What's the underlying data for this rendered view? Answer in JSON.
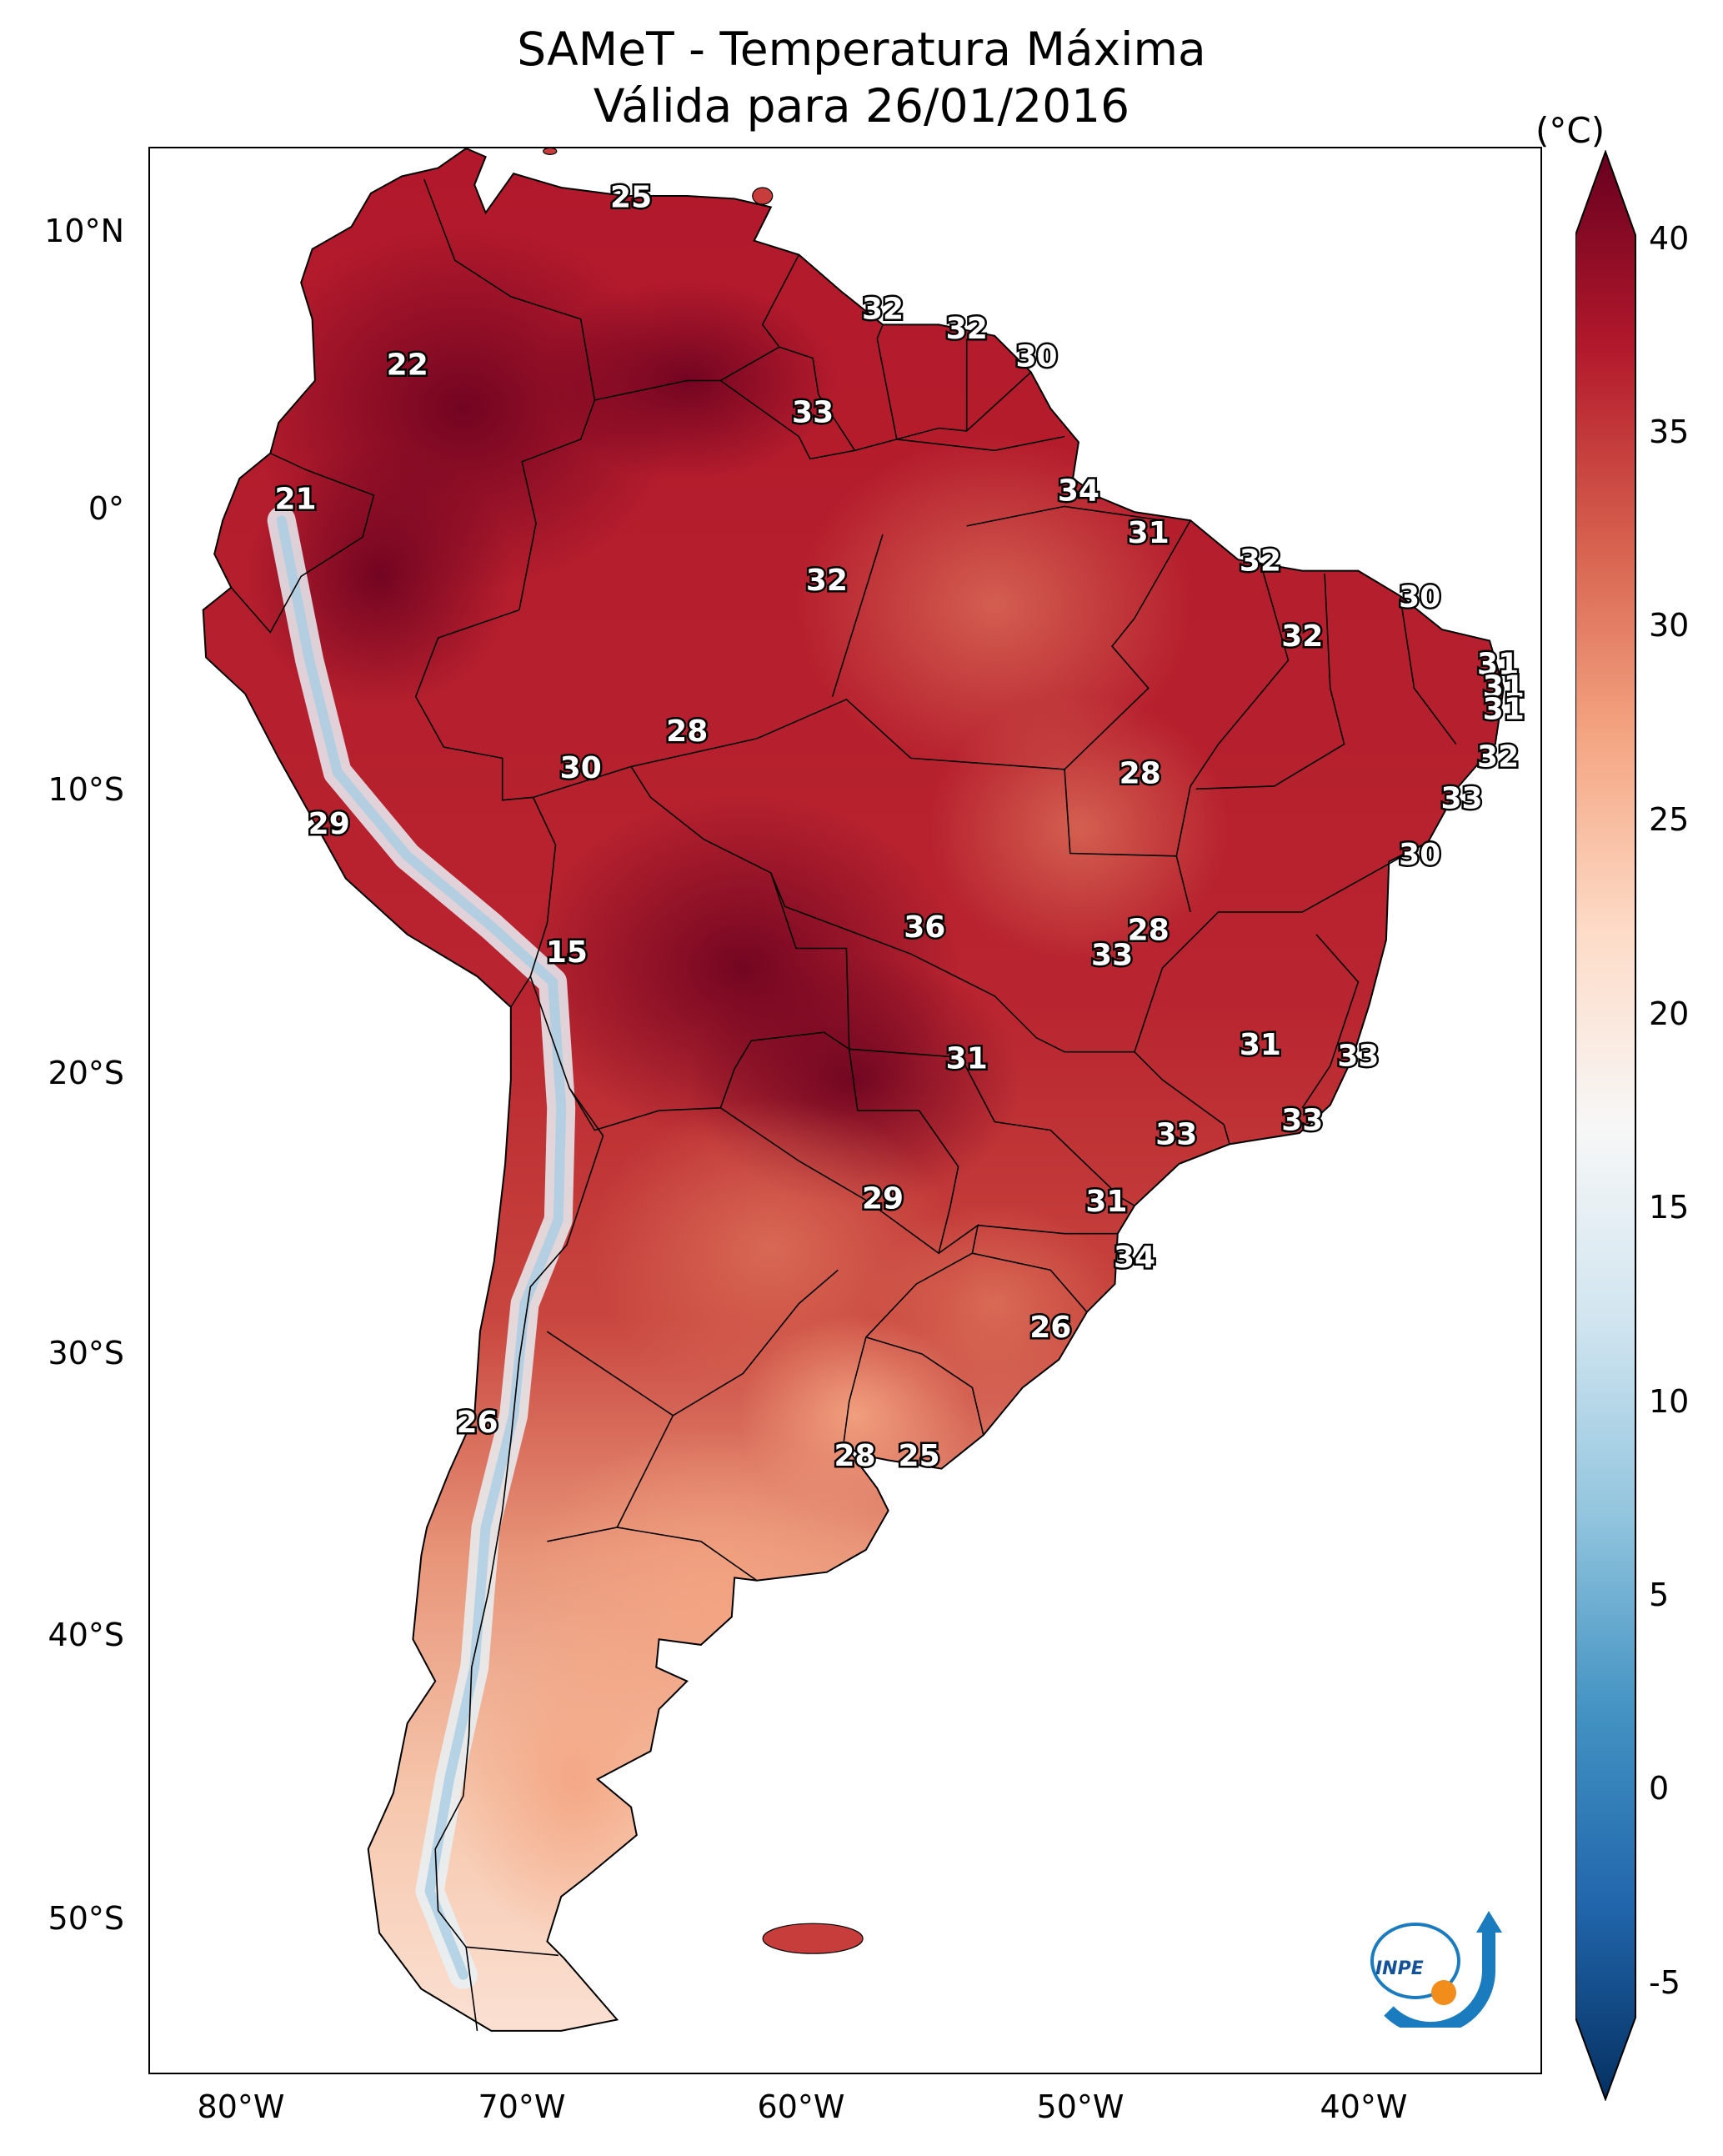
{
  "title": {
    "line1": "SAMeT - Temperatura Máxima",
    "line2": "Válida para 26/01/2016"
  },
  "axes": {
    "lat_ticks": [
      "10°N",
      "0°",
      "10°S",
      "20°S",
      "30°S",
      "40°S",
      "50°S"
    ],
    "lon_ticks": [
      "80°W",
      "70°W",
      "60°W",
      "50°W",
      "40°W"
    ]
  },
  "colorbar": {
    "unit": "(°C)",
    "ticks": [
      "40",
      "35",
      "30",
      "25",
      "20",
      "15",
      "10",
      "5",
      "0",
      "-5"
    ],
    "range": [
      -5,
      40
    ],
    "colors": [
      "#053061",
      "#2166ac",
      "#4393c3",
      "#92c5de",
      "#d1e5f0",
      "#f7f7f7",
      "#fddbc7",
      "#f4a582",
      "#d6604d",
      "#b2182b",
      "#67001f"
    ]
  },
  "contour_labels": [
    {
      "text": "25",
      "lon": -66.0,
      "lat": 10.5
    },
    {
      "text": "22",
      "lon": -74.0,
      "lat": 4.5
    },
    {
      "text": "21",
      "lon": -78.0,
      "lat": -0.3
    },
    {
      "text": "32",
      "lon": -57.0,
      "lat": 6.5
    },
    {
      "text": "32",
      "lon": -54.0,
      "lat": 5.8
    },
    {
      "text": "30",
      "lon": -51.5,
      "lat": 4.8
    },
    {
      "text": "33",
      "lon": -59.5,
      "lat": 2.8
    },
    {
      "text": "34",
      "lon": -50.0,
      "lat": 0.0
    },
    {
      "text": "31",
      "lon": -47.5,
      "lat": -1.5
    },
    {
      "text": "32",
      "lon": -59.0,
      "lat": -3.2
    },
    {
      "text": "32",
      "lon": -43.5,
      "lat": -2.5
    },
    {
      "text": "30",
      "lon": -37.8,
      "lat": -3.8
    },
    {
      "text": "32",
      "lon": -42.0,
      "lat": -5.2
    },
    {
      "text": "31",
      "lon": -35.0,
      "lat": -6.2
    },
    {
      "text": "31",
      "lon": -34.8,
      "lat": -7.0
    },
    {
      "text": "31",
      "lon": -34.8,
      "lat": -7.8
    },
    {
      "text": "32",
      "lon": -35.0,
      "lat": -9.5
    },
    {
      "text": "33",
      "lon": -36.3,
      "lat": -11.0
    },
    {
      "text": "28",
      "lon": -64.0,
      "lat": -8.6
    },
    {
      "text": "30",
      "lon": -67.8,
      "lat": -9.9
    },
    {
      "text": "28",
      "lon": -47.8,
      "lat": -10.1
    },
    {
      "text": "29",
      "lon": -76.8,
      "lat": -11.9
    },
    {
      "text": "30",
      "lon": -37.8,
      "lat": -13.0
    },
    {
      "text": "36",
      "lon": -55.5,
      "lat": -15.6
    },
    {
      "text": "28",
      "lon": -47.5,
      "lat": -15.7
    },
    {
      "text": "33",
      "lon": -48.8,
      "lat": -16.6
    },
    {
      "text": "15",
      "lon": -68.3,
      "lat": -16.5
    },
    {
      "text": "31",
      "lon": -43.5,
      "lat": -19.8
    },
    {
      "text": "33",
      "lon": -40.0,
      "lat": -20.2
    },
    {
      "text": "31",
      "lon": -54.0,
      "lat": -20.3
    },
    {
      "text": "33",
      "lon": -42.0,
      "lat": -22.5
    },
    {
      "text": "33",
      "lon": -46.5,
      "lat": -23.0
    },
    {
      "text": "29",
      "lon": -57.0,
      "lat": -25.3
    },
    {
      "text": "31",
      "lon": -49.0,
      "lat": -25.4
    },
    {
      "text": "34",
      "lon": -48.0,
      "lat": -27.4
    },
    {
      "text": "26",
      "lon": -51.0,
      "lat": -29.9
    },
    {
      "text": "26",
      "lon": -71.5,
      "lat": -33.3
    },
    {
      "text": "28",
      "lon": -58.0,
      "lat": -34.5
    },
    {
      "text": "25",
      "lon": -55.7,
      "lat": -34.5
    }
  ],
  "logo": {
    "text": "INPE"
  }
}
